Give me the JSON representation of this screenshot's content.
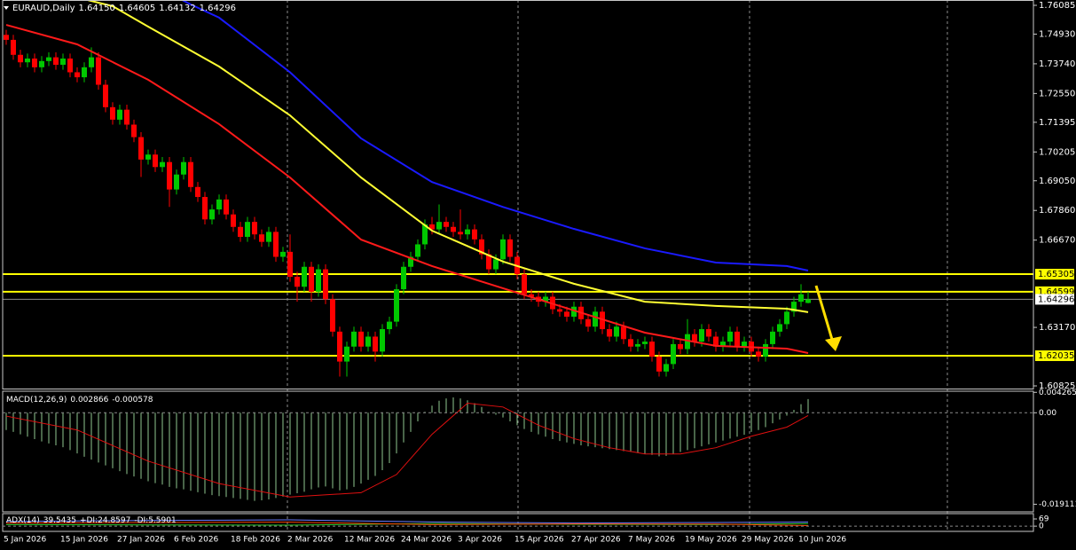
{
  "chart_data": [
    {
      "type": "candlestick",
      "title": "EURAUD,Daily",
      "last_bar_labels": [
        "1.64150",
        "1.64605",
        "1.64132",
        "1.64296"
      ],
      "categories": [
        "5 Jan 2026",
        null,
        null,
        null,
        null,
        null,
        null,
        null,
        "15 Jan 2026",
        null,
        null,
        null,
        null,
        null,
        null,
        null,
        "27 Jan 2026",
        null,
        null,
        null,
        null,
        null,
        null,
        null,
        "6 Feb 2026",
        null,
        null,
        null,
        null,
        null,
        null,
        null,
        "18 Feb 2026",
        null,
        null,
        null,
        null,
        null,
        null,
        null,
        "2 Mar 2026",
        null,
        null,
        null,
        null,
        null,
        null,
        null,
        "12 Mar 2026",
        null,
        null,
        null,
        null,
        null,
        null,
        null,
        "24 Mar 2026",
        null,
        null,
        null,
        null,
        null,
        null,
        null,
        "3 Apr 2026",
        null,
        null,
        null,
        null,
        null,
        null,
        null,
        "15 Apr 2026",
        null,
        null,
        null,
        null,
        null,
        null,
        null,
        "27 Apr 2026",
        null,
        null,
        null,
        null,
        null,
        null,
        null,
        "7 May 2026",
        null,
        null,
        null,
        null,
        null,
        null,
        null,
        "19 May 2026",
        null,
        null,
        null,
        null,
        null,
        null,
        null,
        "29 May 2026",
        null,
        null,
        null,
        null,
        null,
        null,
        null,
        "10 Jun 2026",
        null
      ],
      "open": [
        1.749,
        1.747,
        1.741,
        1.738,
        1.7395,
        1.736,
        1.7385,
        1.74,
        1.737,
        1.7395,
        1.734,
        1.732,
        1.736,
        1.74,
        1.729,
        1.72,
        1.715,
        1.719,
        1.713,
        1.708,
        1.699,
        1.701,
        1.696,
        1.698,
        1.687,
        1.693,
        1.698,
        1.688,
        1.684,
        1.675,
        1.679,
        1.683,
        1.677,
        1.672,
        1.668,
        1.674,
        1.669,
        1.666,
        1.67,
        1.66,
        1.662,
        1.652,
        1.648,
        1.656,
        1.646,
        1.655,
        1.643,
        1.63,
        1.618,
        1.624,
        1.63,
        1.624,
        1.628,
        1.622,
        1.631,
        1.634,
        1.647,
        1.656,
        1.66,
        1.665,
        1.673,
        1.671,
        1.674,
        1.672,
        1.67,
        1.669,
        1.671,
        1.667,
        1.661,
        1.655,
        1.659,
        1.667,
        1.66,
        1.653,
        1.645,
        1.644,
        1.642,
        1.644,
        1.639,
        1.638,
        1.636,
        1.64,
        1.635,
        1.632,
        1.638,
        1.631,
        1.628,
        1.632,
        1.627,
        1.624,
        1.625,
        1.626,
        1.62,
        1.614,
        1.617,
        1.625,
        1.623,
        1.629,
        1.626,
        1.631,
        1.628,
        1.624,
        1.626,
        1.63,
        1.624,
        1.626,
        1.622,
        1.62,
        1.625,
        1.63,
        1.633,
        1.638,
        1.642,
        1.6415
      ],
      "high": [
        1.751,
        1.749,
        1.743,
        1.7415,
        1.7415,
        1.7405,
        1.742,
        1.742,
        1.7415,
        1.7415,
        1.736,
        1.738,
        1.744,
        1.742,
        1.731,
        1.722,
        1.721,
        1.721,
        1.715,
        1.71,
        1.703,
        1.703,
        1.7,
        1.7,
        1.695,
        1.7,
        1.7,
        1.69,
        1.686,
        1.681,
        1.685,
        1.685,
        1.679,
        1.674,
        1.676,
        1.676,
        1.671,
        1.672,
        1.672,
        1.664,
        1.669,
        1.654,
        1.658,
        1.658,
        1.657,
        1.657,
        1.645,
        1.632,
        1.626,
        1.632,
        1.632,
        1.63,
        1.63,
        1.633,
        1.636,
        1.649,
        1.658,
        1.662,
        1.667,
        1.675,
        1.676,
        1.681,
        1.676,
        1.674,
        1.679,
        1.673,
        1.673,
        1.669,
        1.663,
        1.661,
        1.669,
        1.669,
        1.662,
        1.655,
        1.647,
        1.646,
        1.646,
        1.646,
        1.641,
        1.64,
        1.642,
        1.642,
        1.637,
        1.64,
        1.64,
        1.633,
        1.634,
        1.634,
        1.629,
        1.627,
        1.628,
        1.628,
        1.622,
        1.619,
        1.627,
        1.627,
        1.635,
        1.631,
        1.633,
        1.633,
        1.63,
        1.628,
        1.632,
        1.632,
        1.628,
        1.628,
        1.624,
        1.627,
        1.632,
        1.635,
        1.64,
        1.644,
        1.649,
        1.64605
      ],
      "low": [
        1.745,
        1.739,
        1.736,
        1.736,
        1.734,
        1.734,
        1.7365,
        1.735,
        1.735,
        1.732,
        1.73,
        1.73,
        1.734,
        1.727,
        1.718,
        1.713,
        1.713,
        1.711,
        1.706,
        1.692,
        1.697,
        1.694,
        1.694,
        1.68,
        1.685,
        1.691,
        1.686,
        1.682,
        1.673,
        1.673,
        1.677,
        1.675,
        1.67,
        1.666,
        1.666,
        1.667,
        1.664,
        1.664,
        1.658,
        1.658,
        1.65,
        1.642,
        1.646,
        1.642,
        1.644,
        1.641,
        1.628,
        1.612,
        1.612,
        1.622,
        1.622,
        1.622,
        1.618,
        1.62,
        1.629,
        1.632,
        1.645,
        1.654,
        1.658,
        1.663,
        1.669,
        1.669,
        1.67,
        1.668,
        1.667,
        1.667,
        1.665,
        1.659,
        1.653,
        1.653,
        1.657,
        1.658,
        1.651,
        1.643,
        1.642,
        1.64,
        1.64,
        1.637,
        1.636,
        1.634,
        1.634,
        1.633,
        1.63,
        1.63,
        1.629,
        1.626,
        1.626,
        1.625,
        1.622,
        1.622,
        1.623,
        1.618,
        1.612,
        1.612,
        1.615,
        1.621,
        1.621,
        1.624,
        1.624,
        1.626,
        1.622,
        1.622,
        1.624,
        1.622,
        1.622,
        1.62,
        1.618,
        1.618,
        1.623,
        1.628,
        1.631,
        1.636,
        1.64,
        1.64132
      ],
      "close": [
        1.747,
        1.741,
        1.738,
        1.7395,
        1.736,
        1.7385,
        1.74,
        1.737,
        1.7395,
        1.734,
        1.732,
        1.736,
        1.74,
        1.729,
        1.72,
        1.715,
        1.719,
        1.713,
        1.708,
        1.699,
        1.701,
        1.696,
        1.698,
        1.687,
        1.693,
        1.698,
        1.688,
        1.684,
        1.675,
        1.679,
        1.683,
        1.677,
        1.672,
        1.668,
        1.674,
        1.669,
        1.666,
        1.67,
        1.66,
        1.662,
        1.652,
        1.648,
        1.656,
        1.646,
        1.655,
        1.643,
        1.63,
        1.618,
        1.624,
        1.63,
        1.624,
        1.628,
        1.622,
        1.631,
        1.634,
        1.647,
        1.656,
        1.66,
        1.665,
        1.673,
        1.671,
        1.674,
        1.672,
        1.67,
        1.669,
        1.671,
        1.667,
        1.661,
        1.655,
        1.659,
        1.667,
        1.66,
        1.653,
        1.645,
        1.644,
        1.642,
        1.644,
        1.639,
        1.638,
        1.636,
        1.64,
        1.635,
        1.632,
        1.638,
        1.631,
        1.628,
        1.632,
        1.627,
        1.624,
        1.625,
        1.626,
        1.62,
        1.614,
        1.617,
        1.625,
        1.623,
        1.629,
        1.626,
        1.631,
        1.628,
        1.624,
        1.626,
        1.63,
        1.624,
        1.626,
        1.622,
        1.62,
        1.625,
        1.63,
        1.633,
        1.638,
        1.642,
        1.645,
        1.64296
      ],
      "up_color": "#00c800",
      "down_color": "#ff0000",
      "moving_averages": [
        {
          "color": "#ff1a1a",
          "x": [
            0,
            10,
            20,
            30,
            40,
            50,
            60,
            70,
            80,
            90,
            100,
            110,
            113
          ],
          "values": [
            1.753,
            1.7452,
            1.731,
            1.7132,
            1.6918,
            1.6669,
            1.6563,
            1.6474,
            1.6385,
            1.6296,
            1.6243,
            1.6232,
            1.6214
          ]
        },
        {
          "color": "#ffff33",
          "x": [
            0,
            10,
            15,
            20,
            30,
            40,
            50,
            60,
            70,
            80,
            90,
            100,
            110,
            113
          ],
          "values": [
            1.771,
            1.764,
            1.7605,
            1.7523,
            1.7363,
            1.7167,
            1.6918,
            1.6705,
            1.6581,
            1.6492,
            1.642,
            1.6403,
            1.6392,
            1.6378
          ]
        },
        {
          "color": "#1a1aff",
          "x": [
            0,
            10,
            20,
            26,
            30,
            40,
            50,
            60,
            70,
            80,
            90,
            100,
            110,
            113
          ],
          "values": [
            1.795,
            1.783,
            1.7701,
            1.7612,
            1.7559,
            1.734,
            1.7075,
            1.69,
            1.68,
            1.6712,
            1.6634,
            1.6577,
            1.6563,
            1.6545
          ]
        }
      ],
      "hlines": [
        {
          "value": 1.65305,
          "color": "#ffff00"
        },
        {
          "value": 1.64599,
          "color": "#ffff00"
        },
        {
          "value": 1.62035,
          "color": "#ffff00"
        }
      ],
      "price_line": {
        "value": 1.64296,
        "color": "#8c8c8c"
      },
      "ylim": [
        1.60718,
        1.76298
      ],
      "yticks": [
        1.76085,
        {
          "value": 1.7493,
          "label": "1.74930"
        },
        {
          "value": 1.7374,
          "label": "1.73740"
        },
        {
          "value": 1.7255,
          "label": "1.72550"
        },
        1.71395,
        1.70205,
        {
          "value": 1.6905,
          "label": "1.69050"
        },
        {
          "value": 1.6786,
          "label": "1.67860"
        },
        {
          "value": 1.6667,
          "label": "1.66670"
        },
        {
          "value": 1.6317,
          "label": "1.63170"
        },
        1.60825
      ]
    },
    {
      "type": "macd",
      "title": "MACD(12,26,9)",
      "color": "#8fc88f",
      "values": [
        -0.0036,
        -0.004,
        -0.0045,
        -0.005,
        -0.0055,
        -0.006,
        -0.0064,
        -0.0068,
        -0.0072,
        -0.0078,
        -0.0085,
        -0.0092,
        -0.0098,
        -0.0104,
        -0.011,
        -0.0116,
        -0.0122,
        -0.0128,
        -0.0133,
        -0.0138,
        -0.0143,
        -0.0147,
        -0.015,
        -0.0155,
        -0.0158,
        -0.016,
        -0.0163,
        -0.0166,
        -0.0169,
        -0.0172,
        -0.0174,
        -0.0176,
        -0.0178,
        -0.018,
        -0.0182,
        -0.0184,
        -0.0183,
        -0.0181,
        -0.0178,
        -0.0175,
        -0.0171,
        -0.0168,
        -0.0165,
        -0.016,
        -0.0156,
        -0.0154,
        -0.0158,
        -0.0162,
        -0.016,
        -0.0155,
        -0.0148,
        -0.014,
        -0.0132,
        -0.012,
        -0.0105,
        -0.0085,
        -0.0062,
        -0.004,
        -0.0018,
        0.0002,
        0.0015,
        0.0025,
        0.003,
        0.0032,
        0.003,
        0.0026,
        0.002,
        0.0012,
        0.0002,
        -0.0004,
        -0.001,
        -0.0018,
        -0.0026,
        -0.0034,
        -0.004,
        -0.0045,
        -0.005,
        -0.0055,
        -0.0059,
        -0.0062,
        -0.0065,
        -0.0068,
        -0.007,
        -0.0072,
        -0.0074,
        -0.0076,
        -0.0078,
        -0.008,
        -0.0082,
        -0.0084,
        -0.0086,
        -0.0088,
        -0.0091,
        -0.009,
        -0.0086,
        -0.0082,
        -0.0078,
        -0.0074,
        -0.007,
        -0.0066,
        -0.0062,
        -0.0058,
        -0.0054,
        -0.005,
        -0.0046,
        -0.004,
        -0.0036,
        -0.003,
        -0.0022,
        -0.0014,
        -0.0006,
        0.0006,
        0.0018,
        0.002866
      ],
      "signal": {
        "color": "#e01010",
        "x": [
          0,
          10,
          20,
          30,
          40,
          50,
          55,
          60,
          65,
          70,
          75,
          80,
          85,
          90,
          95,
          100,
          105,
          110,
          113
        ],
        "values": [
          -0.0007,
          -0.0036,
          -0.0101,
          -0.0148,
          -0.0176,
          -0.0167,
          -0.0129,
          -0.0045,
          0.002,
          0.0012,
          -0.0026,
          -0.0054,
          -0.0073,
          -0.0086,
          -0.0086,
          -0.0073,
          -0.0049,
          -0.003,
          -0.000578
        ]
      },
      "ylim": [
        -0.0207,
        0.0045
      ],
      "yticks": [
        0.004265,
        {
          "value": 0,
          "label": "0.00"
        },
        -0.019111
      ]
    },
    {
      "type": "adx",
      "title": "ADX(14)",
      "series": [
        {
          "color": "#6a7dff",
          "x": [
            0,
            20,
            40,
            60,
            80,
            100,
            113
          ],
          "values": [
            45,
            55,
            60,
            40,
            30,
            35,
            39.5435
          ]
        },
        {
          "name": "+DI:",
          "color": "#32cd32",
          "x": [
            0,
            20,
            40,
            60,
            80,
            100,
            113
          ],
          "values": [
            15,
            12,
            10,
            25,
            18,
            15,
            24.8597
          ]
        },
        {
          "name": "-DI:",
          "color": "#ff4500",
          "x": [
            0,
            20,
            40,
            60,
            80,
            100,
            113
          ],
          "values": [
            30,
            35,
            38,
            15,
            22,
            20,
            5.5901
          ]
        }
      ],
      "ylim": [
        -50,
        120
      ],
      "yticks": [
        69,
        0
      ]
    }
  ]
}
